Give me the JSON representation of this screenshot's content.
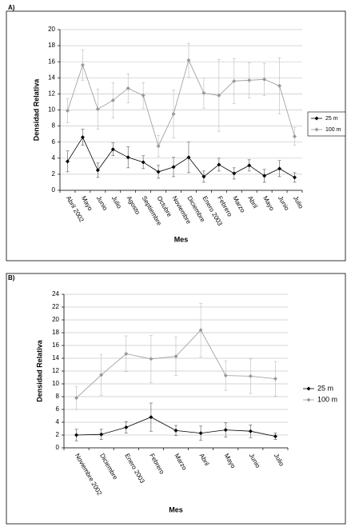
{
  "chart_data": [
    {
      "type": "line",
      "panel_label": "A)",
      "y_label": "Densidad Relativa",
      "x_label": "Mes",
      "categories": [
        "Abril 2002",
        "Mayo",
        "Junio",
        "Julio",
        "Agosto",
        "Septiembre",
        "Octubre",
        "Noviembre",
        "Diciembre",
        "Enero 2003",
        "Febrero",
        "Marzo",
        "Abril",
        "Mayo",
        "Junio",
        "Julio"
      ],
      "series": [
        {
          "name": "25 m",
          "color": "#000000",
          "values": [
            3.6,
            6.6,
            2.5,
            5.1,
            4.1,
            3.5,
            2.3,
            2.9,
            4.1,
            1.7,
            3.2,
            2.1,
            3.1,
            1.8,
            2.7,
            1.6
          ],
          "errors": [
            1.3,
            1.0,
            0.9,
            0.8,
            1.3,
            0.8,
            0.8,
            1.2,
            1.9,
            0.7,
            0.8,
            0.7,
            0.7,
            0.8,
            1.0,
            0.6
          ]
        },
        {
          "name": "100 m",
          "color": "#999999",
          "values": [
            9.9,
            15.6,
            10.1,
            11.2,
            12.7,
            11.8,
            5.5,
            9.5,
            16.2,
            12.1,
            11.8,
            13.6,
            13.7,
            13.8,
            13.0,
            6.7
          ],
          "errors": [
            1.5,
            1.9,
            2.5,
            2.2,
            1.8,
            1.6,
            1.3,
            3.0,
            2.1,
            1.9,
            4.5,
            2.8,
            2.2,
            2.0,
            3.5,
            1.1
          ]
        }
      ],
      "ylim": [
        0,
        20
      ],
      "yticks": [
        0,
        2,
        4,
        6,
        8,
        10,
        12,
        14,
        16,
        18,
        20
      ],
      "grid": true,
      "legend": "right"
    },
    {
      "type": "line",
      "panel_label": "B)",
      "y_label": "Densidad Relativa",
      "x_label": "Mes",
      "categories": [
        "Noviembre 2002",
        "Diciembre",
        "Enero 2003",
        "Febrero",
        "Marzo",
        "Abril",
        "Mayo",
        "Junio",
        "Julio"
      ],
      "series": [
        {
          "name": "25 m",
          "color": "#000000",
          "values": [
            2.0,
            2.1,
            3.2,
            4.8,
            2.7,
            2.3,
            2.8,
            2.6,
            1.8
          ],
          "errors": [
            0.9,
            0.8,
            0.9,
            2.2,
            0.8,
            1.1,
            1.1,
            1.0,
            0.5
          ]
        },
        {
          "name": "100 m",
          "color": "#999999",
          "values": [
            7.8,
            11.4,
            14.7,
            13.9,
            14.3,
            18.4,
            11.3,
            11.2,
            10.8
          ],
          "errors": [
            1.8,
            3.2,
            2.8,
            3.7,
            3.0,
            4.2,
            2.3,
            2.7,
            2.7
          ]
        }
      ],
      "ylim": [
        0,
        24
      ],
      "yticks": [
        0,
        2,
        4,
        6,
        8,
        10,
        12,
        14,
        16,
        18,
        20,
        22,
        24
      ],
      "grid": true,
      "legend": "right"
    }
  ]
}
